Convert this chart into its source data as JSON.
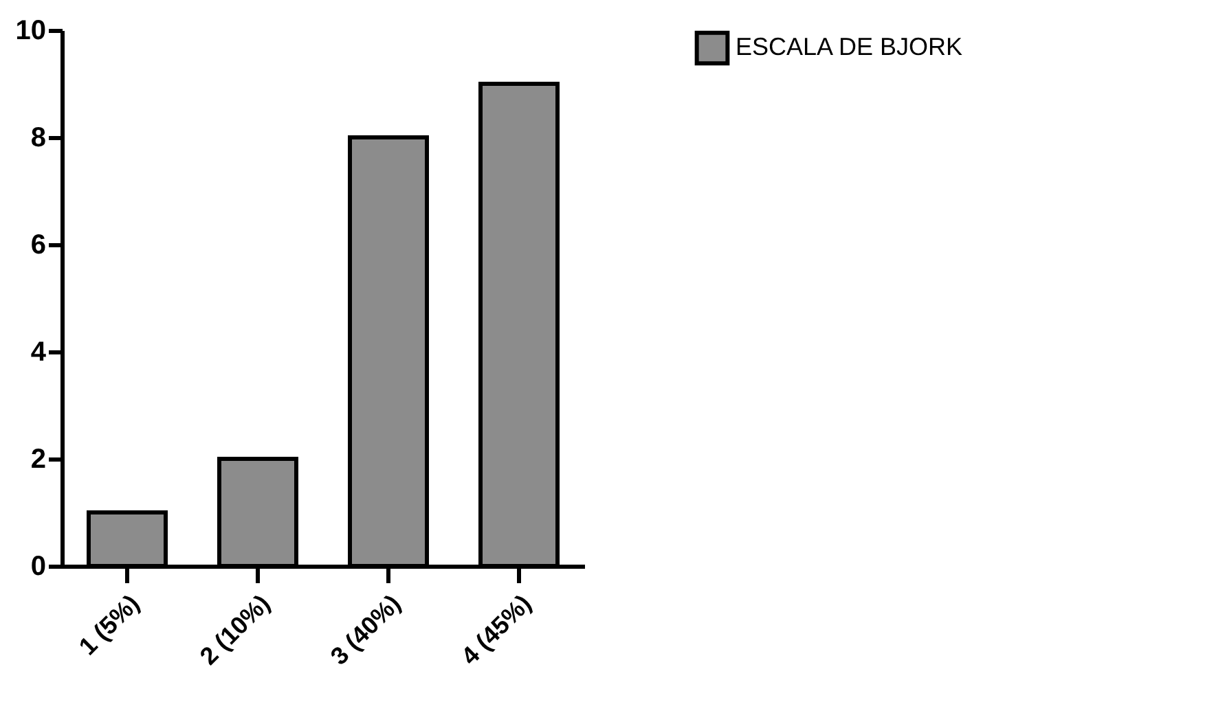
{
  "chart_data": {
    "type": "bar",
    "categories": [
      "1 (5%)",
      "2 (10%)",
      "3 (40%)",
      "4 (45%)"
    ],
    "series": [
      {
        "name": "ESCALA DE BJORK",
        "color": "#8c8c8c",
        "values": [
          1,
          2,
          8,
          9
        ]
      }
    ],
    "ylim": [
      0,
      10
    ],
    "yticks": [
      0,
      2,
      4,
      6,
      8,
      10
    ],
    "grid": false,
    "legend": "top right"
  }
}
